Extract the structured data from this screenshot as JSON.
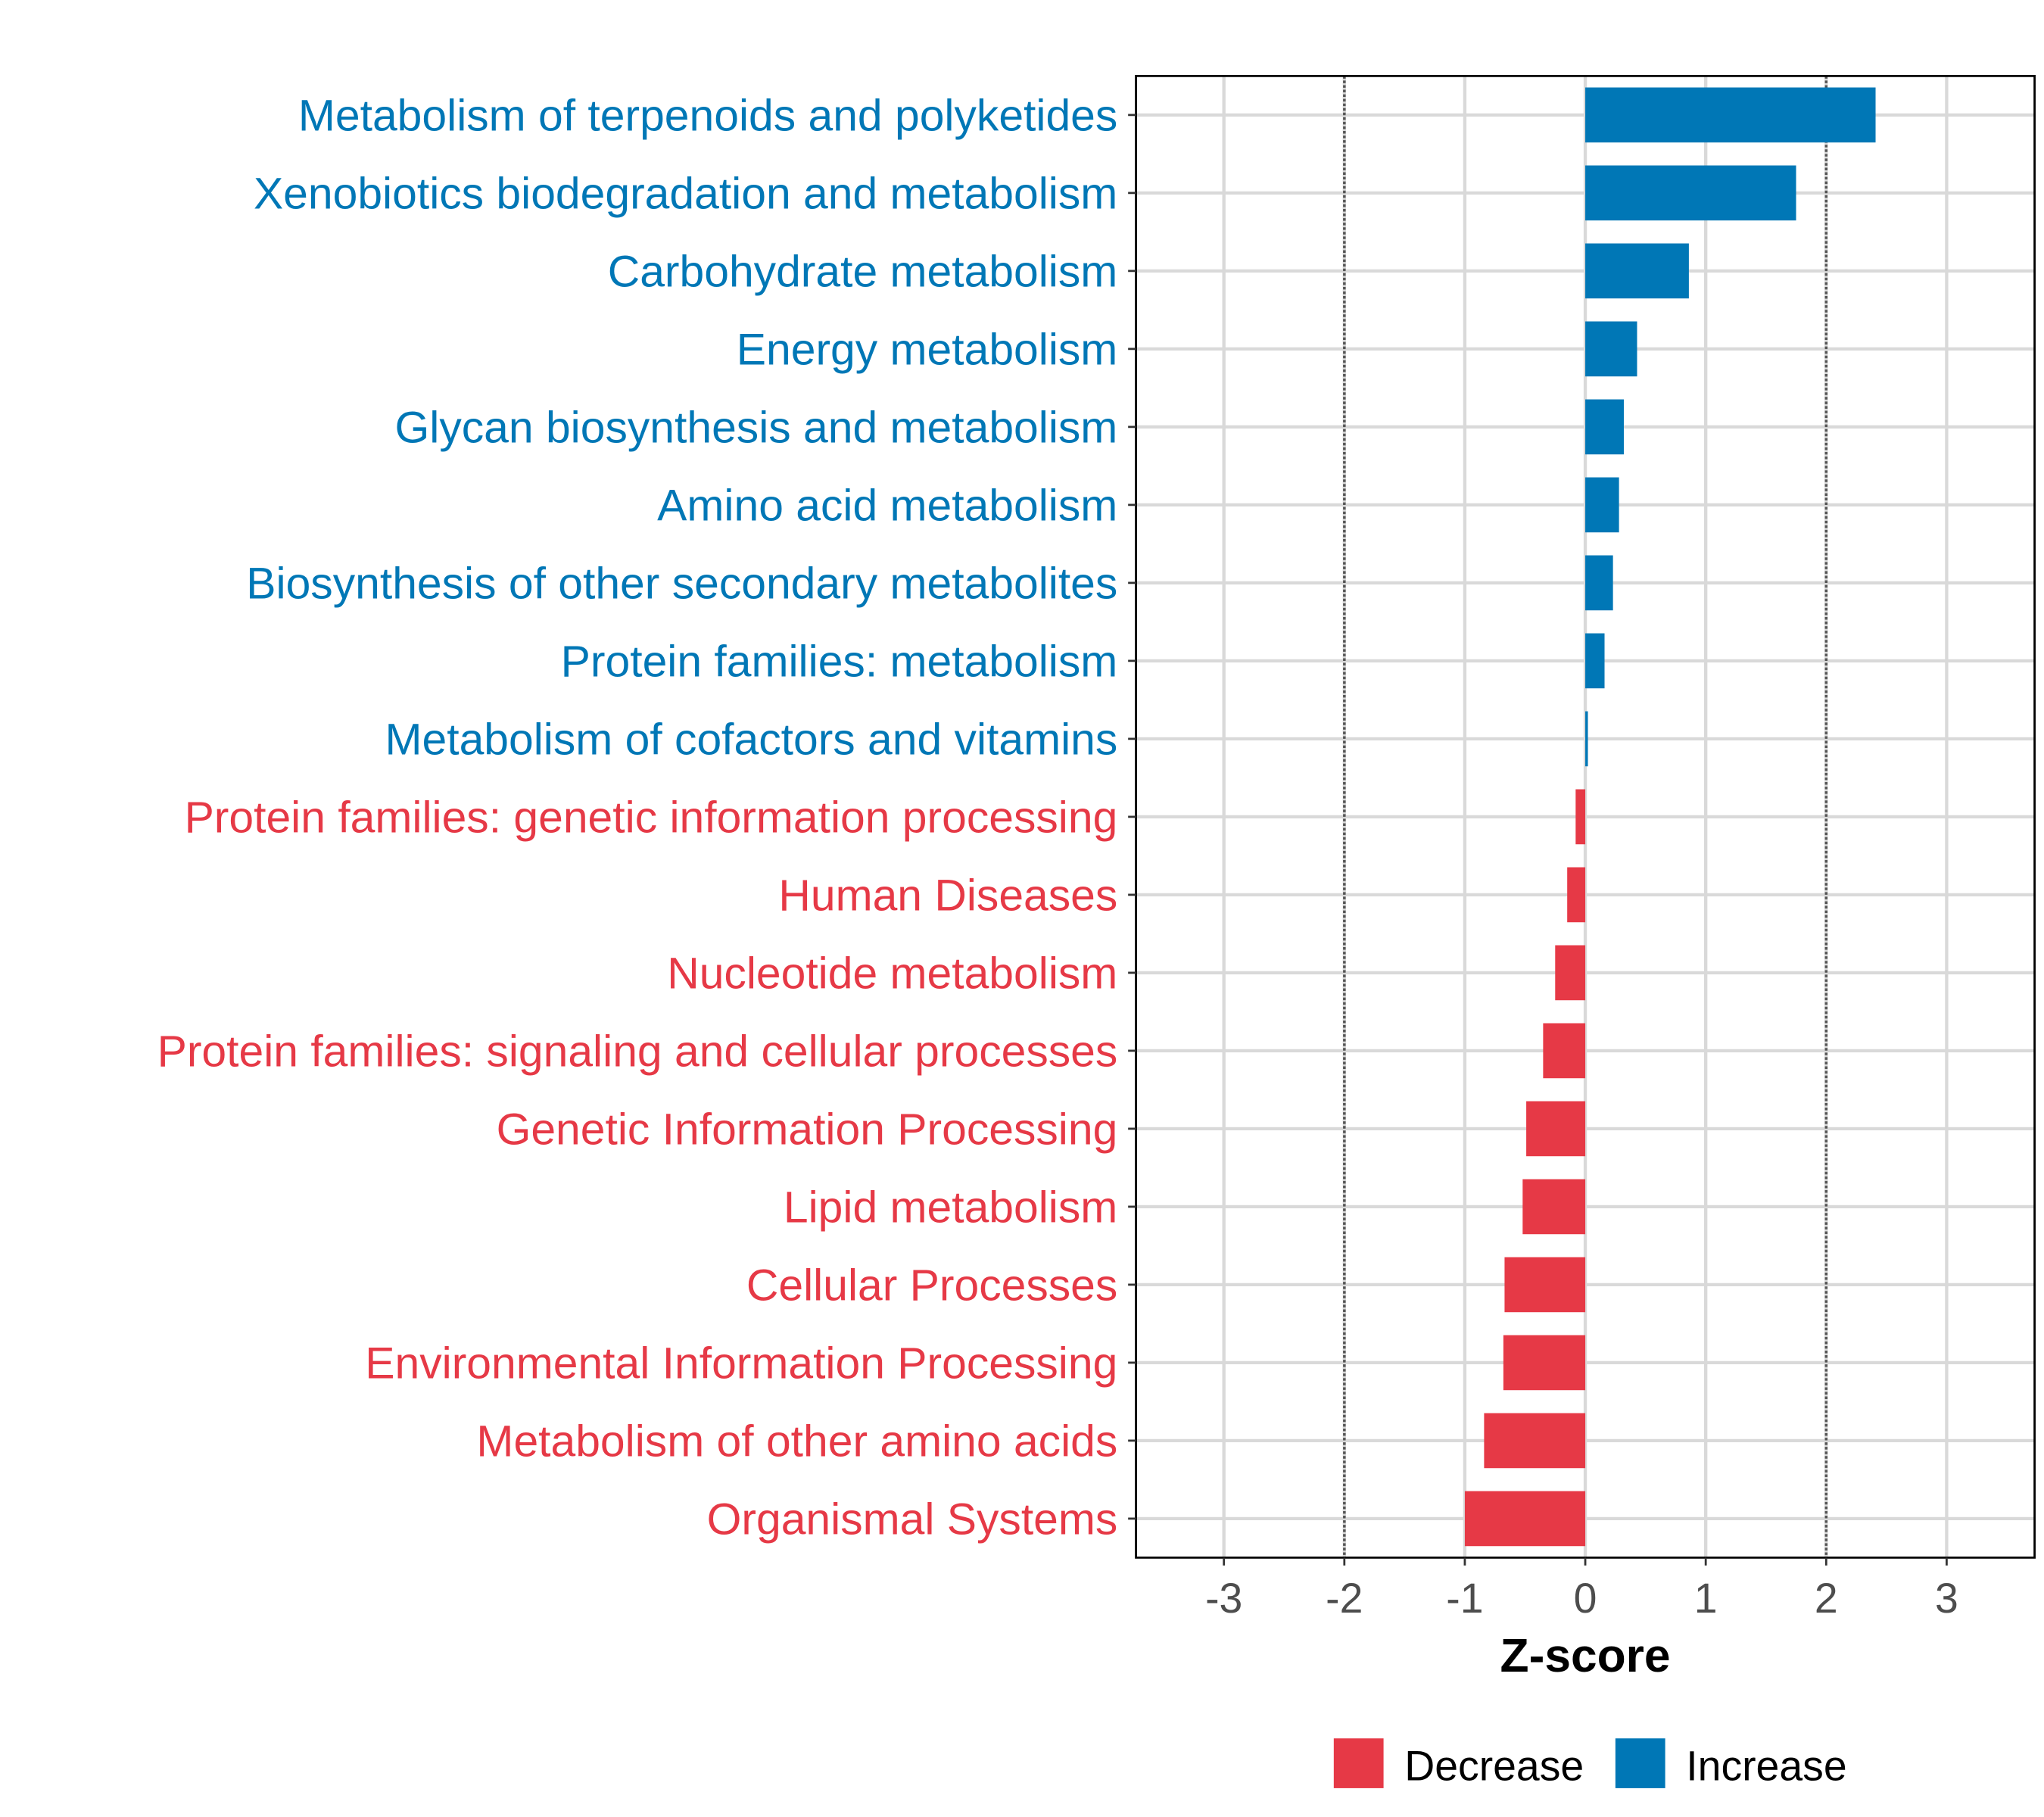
{
  "chart_data": {
    "type": "bar",
    "orientation": "horizontal",
    "title": "",
    "xlabel": "Z-score",
    "ylabel": "",
    "xlim": [
      -3.73,
      3.73
    ],
    "xticks": [
      -3,
      -2,
      -1,
      0,
      1,
      2,
      3
    ],
    "xtick_labels": [
      "-3",
      "-2",
      "-1",
      "0",
      "1",
      "2",
      "3"
    ],
    "reference_lines": [
      -2,
      2
    ],
    "grid": true,
    "legend": {
      "placement": "bottom",
      "entries": [
        {
          "label": "Decrease",
          "color": "#E63946"
        },
        {
          "label": "Increase",
          "color": "#0077B6"
        }
      ]
    },
    "categories": [
      "Metabolism of terpenoids and polyketides",
      "Xenobiotics biodegradation and metabolism",
      "Carbohydrate metabolism",
      "Energy metabolism",
      "Glycan biosynthesis and metabolism",
      "Amino acid metabolism",
      "Biosynthesis of other secondary metabolites",
      "Protein families: metabolism",
      "Metabolism of cofactors and vitamins",
      "Protein families: genetic information processing",
      "Human Diseases",
      "Nucleotide metabolism",
      "Protein families: signaling and cellular processes",
      "Genetic Information Processing",
      "Lipid metabolism",
      "Cellular Processes",
      "Environmental Information Processing",
      "Metabolism of other amino acids",
      "Organismal Systems"
    ],
    "values": [
      2.41,
      1.75,
      0.86,
      0.43,
      0.32,
      0.28,
      0.23,
      0.16,
      0.02,
      -0.08,
      -0.15,
      -0.25,
      -0.35,
      -0.49,
      -0.52,
      -0.67,
      -0.68,
      -0.84,
      -1.0
    ]
  }
}
